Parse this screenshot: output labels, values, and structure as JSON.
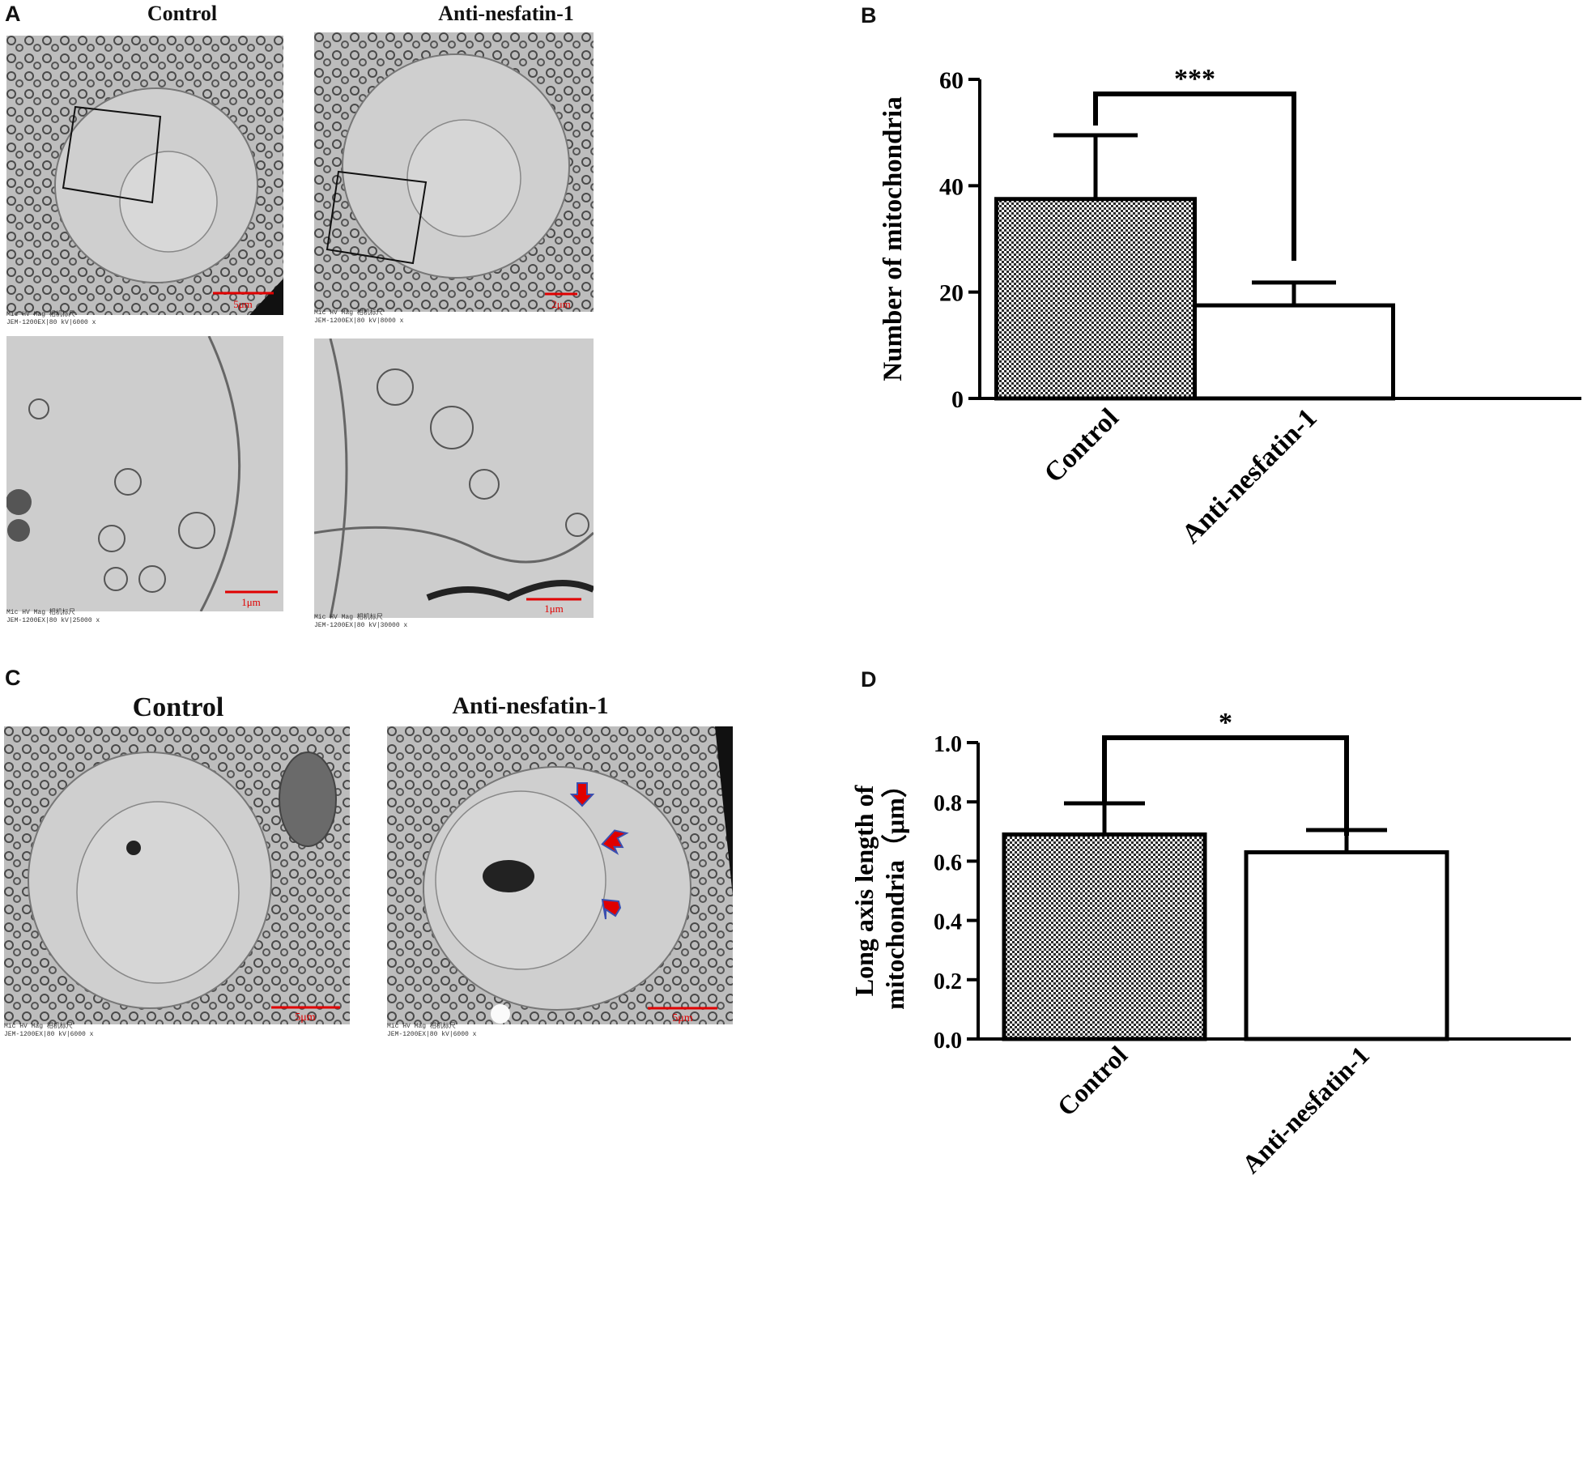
{
  "panels": {
    "A": {
      "letter": "A",
      "col_titles": [
        "Control",
        "Anti-nesfatin-1"
      ],
      "scale_bars": [
        "5μm",
        "2μm",
        "1μm",
        "1μm"
      ],
      "footer_top_left": {
        "labels": "Mic    HV    Mag   相机标尺",
        "meta": "JEM-1200EX|80 kV|6000 x"
      },
      "footer_top_right": {
        "labels": "Mic    HV    Mag   相机标尺",
        "meta": "JEM-1200EX|80 kV|8000 x"
      },
      "footer_bottom_left": {
        "labels": "Mic    HV    Mag   相机标尺",
        "meta": "JEM-1200EX|80 kV|25000 x"
      },
      "footer_bottom_right": {
        "labels": "Mic    HV    Mag   相机标尺",
        "meta": "JEM-1200EX|80 kV|30000 x"
      }
    },
    "B": {
      "letter": "B"
    },
    "C": {
      "letter": "C",
      "col_titles": [
        "Control",
        "Anti-nesfatin-1"
      ],
      "scale_bars": [
        "5μm",
        "5μm"
      ],
      "footer_left": {
        "labels": "Mic    HV    Mag   相机标尺",
        "meta": "JEM-1200EX|80 kV|6000 x"
      },
      "footer_right": {
        "labels": "Mic    HV    Mag   相机标尺",
        "meta": "JEM-1200EX|80 kV|6000 x"
      }
    },
    "D": {
      "letter": "D"
    }
  },
  "chart_data": [
    {
      "panel": "B",
      "type": "bar",
      "categories": [
        "Control",
        "Anti-nesfatin-1"
      ],
      "values": [
        37.5,
        17.5
      ],
      "errors": [
        12,
        4.3
      ],
      "ylabel": "Number of mitochondria",
      "ylim": [
        0,
        60
      ],
      "yticks": [
        "0",
        "20",
        "40",
        "60"
      ],
      "significance": "***",
      "bar_fills": [
        "checker",
        "white"
      ]
    },
    {
      "panel": "D",
      "type": "bar",
      "categories": [
        "Control",
        "Anti-nesfatin-1"
      ],
      "values": [
        0.69,
        0.63
      ],
      "errors": [
        0.105,
        0.075
      ],
      "ylabel_lines": [
        "Long axis length of",
        "mitochondria（μm）"
      ],
      "ylim": [
        0,
        1.0
      ],
      "yticks": [
        "0.0",
        "0.2",
        "0.4",
        "0.6",
        "0.8",
        "1.0"
      ],
      "significance": "*",
      "bar_fills": [
        "checker",
        "white"
      ]
    }
  ]
}
